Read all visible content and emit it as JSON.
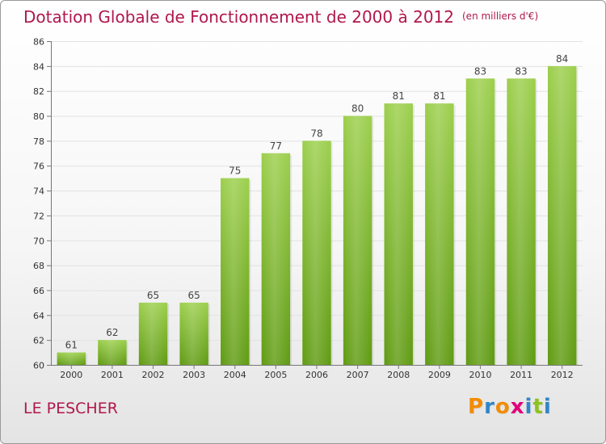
{
  "header": {
    "title": "Dotation Globale de Fonctionnement de 2000 à 2012",
    "unit": "(en milliers d'€)"
  },
  "footer": {
    "place": "LE PESCHER",
    "logo": [
      "P",
      "r",
      "o",
      "x",
      "i",
      "t",
      "i"
    ],
    "logo_colors": [
      "#f28c00",
      "#2f86c9",
      "#f28c00",
      "#e2007a",
      "#2f86c9",
      "#8dc21f",
      "#2f86c9"
    ]
  },
  "colors": {
    "bar_top": "#9ccf4c",
    "bar_bottom": "#5f9b12",
    "accent": "#b0174d"
  },
  "chart_data": {
    "type": "bar",
    "title": "Dotation Globale de Fonctionnement de 2000 à 2012",
    "subtitle": "(en milliers d'€)",
    "categories": [
      "2000",
      "2001",
      "2002",
      "2003",
      "2004",
      "2005",
      "2006",
      "2007",
      "2008",
      "2009",
      "2010",
      "2011",
      "2012"
    ],
    "values": [
      61,
      62,
      65,
      65,
      75,
      77,
      78,
      80,
      81,
      81,
      83,
      83,
      84
    ],
    "ylim": [
      60,
      86
    ],
    "yticks": [
      60,
      62,
      64,
      66,
      68,
      70,
      72,
      74,
      76,
      78,
      80,
      82,
      84,
      86
    ],
    "grid": true,
    "legend": "none"
  }
}
